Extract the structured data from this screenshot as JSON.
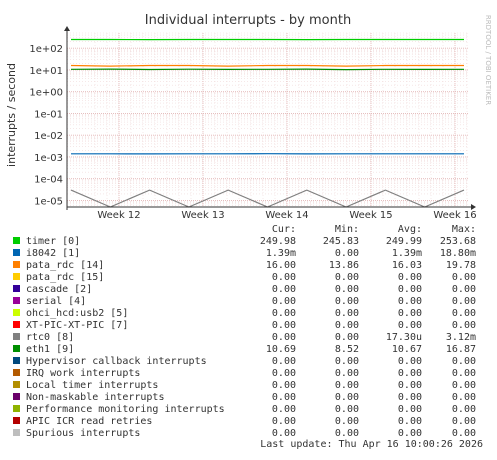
{
  "chart_data": {
    "type": "line",
    "title": "Individual interrupts - by month",
    "ylabel": "interrupts / second",
    "side_label": "RRDTOOL / TOBI OETIKER",
    "y_scale": "log",
    "ylim": [
      5e-06,
      500
    ],
    "y_ticks": [
      "1e+02",
      "1e+01",
      "1e+00",
      "1e-01",
      "1e-02",
      "1e-03",
      "1e-04",
      "1e-05"
    ],
    "x_ticks": [
      "Week 12",
      "Week 13",
      "Week 14",
      "Week 15",
      "Week 16"
    ],
    "grid": true,
    "legend": {
      "columns": [
        "Cur:",
        "Min:",
        "Avg:",
        "Max:"
      ],
      "rows": [
        {
          "name": "timer [0]",
          "color": "#00cc00",
          "cur": "249.98",
          "min": "245.83",
          "avg": "249.99",
          "max": "253.68"
        },
        {
          "name": "i8042 [1]",
          "color": "#0066b3",
          "cur": "1.39m",
          "min": "0.00",
          "avg": "1.39m",
          "max": "18.80m"
        },
        {
          "name": "pata_rdc [14]",
          "color": "#ff8000",
          "cur": "16.00",
          "min": "13.86",
          "avg": "16.03",
          "max": "19.78"
        },
        {
          "name": "pata_rdc [15]",
          "color": "#ffcc00",
          "cur": "0.00",
          "min": "0.00",
          "avg": "0.00",
          "max": "0.00"
        },
        {
          "name": "cascade [2]",
          "color": "#330099",
          "cur": "0.00",
          "min": "0.00",
          "avg": "0.00",
          "max": "0.00"
        },
        {
          "name": "serial [4]",
          "color": "#990099",
          "cur": "0.00",
          "min": "0.00",
          "avg": "0.00",
          "max": "0.00"
        },
        {
          "name": "ohci_hcd:usb2 [5]",
          "color": "#ccff00",
          "cur": "0.00",
          "min": "0.00",
          "avg": "0.00",
          "max": "0.00"
        },
        {
          "name": "XT-PIC-XT-PIC [7]",
          "color": "#ff0000",
          "cur": "0.00",
          "min": "0.00",
          "avg": "0.00",
          "max": "0.00"
        },
        {
          "name": "rtc0 [8]",
          "color": "#808080",
          "cur": "0.00",
          "min": "0.00",
          "avg": "17.30u",
          "max": "3.12m"
        },
        {
          "name": "eth1 [9]",
          "color": "#008f00",
          "cur": "10.69",
          "min": "8.52",
          "avg": "10.67",
          "max": "16.87"
        },
        {
          "name": "Hypervisor callback interrupts",
          "color": "#00487d",
          "cur": "0.00",
          "min": "0.00",
          "avg": "0.00",
          "max": "0.00"
        },
        {
          "name": "IRQ work interrupts",
          "color": "#b35a00",
          "cur": "0.00",
          "min": "0.00",
          "avg": "0.00",
          "max": "0.00"
        },
        {
          "name": "Local timer interrupts",
          "color": "#b38f00",
          "cur": "0.00",
          "min": "0.00",
          "avg": "0.00",
          "max": "0.00"
        },
        {
          "name": "Non-maskable interrupts",
          "color": "#6b006b",
          "cur": "0.00",
          "min": "0.00",
          "avg": "0.00",
          "max": "0.00"
        },
        {
          "name": "Performance monitoring interrupts",
          "color": "#8fb300",
          "cur": "0.00",
          "min": "0.00",
          "avg": "0.00",
          "max": "0.00"
        },
        {
          "name": "APIC ICR read retries",
          "color": "#b30000",
          "cur": "0.00",
          "min": "0.00",
          "avg": "0.00",
          "max": "0.00"
        },
        {
          "name": "Spurious interrupts",
          "color": "#bebebe",
          "cur": "0.00",
          "min": "0.00",
          "avg": "0.00",
          "max": "0.00"
        }
      ]
    },
    "series": [
      {
        "name": "timer [0]",
        "color": "#00cc00",
        "values": [
          250,
          250,
          249,
          250,
          250,
          250,
          249,
          250,
          250,
          250,
          250
        ]
      },
      {
        "name": "pata_rdc [14]",
        "color": "#ff8000",
        "values": [
          16,
          15,
          16,
          16,
          15,
          16,
          16,
          15,
          16,
          16,
          16
        ]
      },
      {
        "name": "eth1 [9]",
        "color": "#008f00",
        "values": [
          10.7,
          11,
          10.5,
          10.8,
          10.6,
          10.7,
          10.9,
          10.4,
          10.7,
          10.6,
          10.7
        ]
      },
      {
        "name": "i8042 [1]",
        "color": "#0066b3",
        "values": [
          0.00139,
          0.0014,
          0.00138,
          0.0014,
          0.00139,
          0.00141,
          0.00138,
          0.00139,
          0.0014,
          0.00139,
          0.00139
        ]
      },
      {
        "name": "rtc0 [8]",
        "color": "#808080",
        "values": [
          3e-05,
          5e-06,
          3e-05,
          5e-06,
          3e-05,
          5e-06,
          3e-05,
          5e-06,
          3e-05,
          5e-06,
          3e-05
        ]
      }
    ],
    "last_update": "Last update: Thu Apr 16 10:00:26 2026"
  }
}
